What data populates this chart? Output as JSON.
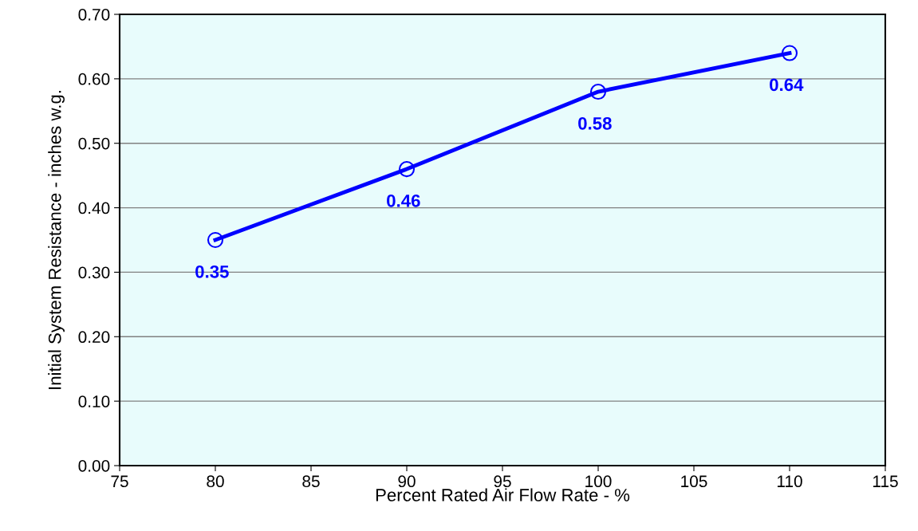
{
  "chart_data": {
    "type": "line",
    "xlabel": "Percent Rated Air Flow Rate - %",
    "ylabel": "Initial System Resistance - inches w.g.",
    "x": [
      80,
      90,
      100,
      110
    ],
    "series": [
      {
        "color": "#0000ff",
        "values": [
          0.35,
          0.46,
          0.58,
          0.64
        ]
      }
    ],
    "value_labels": [
      "0.35",
      "0.46",
      "0.58",
      "0.64"
    ],
    "xlim": [
      75,
      115
    ],
    "xticks": [
      75,
      80,
      85,
      90,
      95,
      100,
      105,
      110,
      115
    ],
    "ylim": [
      0,
      0.7
    ],
    "yticks": [
      {
        "value": 0,
        "label": "0.00"
      },
      {
        "value": 0.1,
        "label": "0.10"
      },
      {
        "value": 0.2,
        "label": "0.20"
      },
      {
        "value": 0.3,
        "label": "0.30"
      },
      {
        "value": 0.4,
        "label": "0.40"
      },
      {
        "value": 0.5,
        "label": "0.50"
      },
      {
        "value": 0.6,
        "label": "0.60"
      },
      {
        "value": 0.7,
        "label": "0.70"
      }
    ],
    "grid": "y",
    "marker": "circle",
    "line_style": "solid",
    "legend": false
  }
}
